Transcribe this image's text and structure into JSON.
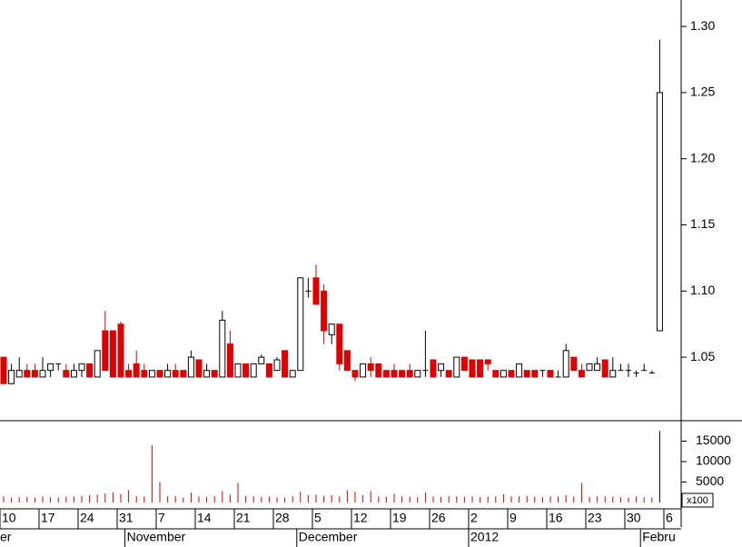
{
  "chart_data": {
    "type": "candlestick",
    "categories": [
      "10",
      null,
      null,
      null,
      null,
      "17",
      null,
      null,
      null,
      null,
      "24",
      null,
      null,
      null,
      null,
      "31",
      null,
      null,
      null,
      null,
      "7",
      null,
      null,
      null,
      null,
      "14",
      null,
      null,
      null,
      null,
      "21",
      null,
      null,
      null,
      null,
      "28",
      null,
      null,
      null,
      null,
      "5",
      null,
      null,
      null,
      null,
      "12",
      null,
      null,
      null,
      null,
      "19",
      null,
      null,
      null,
      null,
      "26",
      null,
      null,
      null,
      null,
      "2",
      null,
      null,
      null,
      null,
      "9",
      null,
      null,
      null,
      null,
      "16",
      null,
      null,
      null,
      null,
      "23",
      null,
      null,
      null,
      null,
      "30",
      null,
      null,
      null,
      null,
      "6"
    ],
    "month_categories": [
      "er",
      null,
      null,
      null,
      null,
      null,
      null,
      null,
      null,
      null,
      null,
      null,
      null,
      null,
      null,
      null,
      "November",
      null,
      null,
      null,
      null,
      null,
      null,
      null,
      null,
      null,
      null,
      null,
      null,
      null,
      null,
      null,
      null,
      null,
      null,
      null,
      null,
      null,
      "December",
      null,
      null,
      null,
      null,
      null,
      null,
      null,
      null,
      null,
      null,
      null,
      null,
      null,
      null,
      null,
      null,
      null,
      null,
      null,
      null,
      null,
      "2012",
      null,
      null,
      null,
      null,
      null,
      null,
      null,
      null,
      null,
      null,
      null,
      null,
      null,
      null,
      null,
      null,
      null,
      null,
      null,
      null,
      null,
      "Febru",
      null,
      null,
      null
    ],
    "open": [
      1.05,
      1.03,
      1.035,
      1.04,
      1.04,
      1.035,
      1.04,
      1.045,
      1.04,
      1.035,
      1.04,
      1.045,
      1.035,
      1.07,
      1.07,
      1.075,
      1.04,
      1.045,
      1.04,
      1.035,
      1.04,
      1.035,
      1.04,
      1.04,
      1.035,
      1.048,
      1.035,
      1.04,
      1.035,
      1.06,
      1.035,
      1.045,
      1.035,
      1.045,
      1.045,
      1.04,
      1.055,
      1.035,
      1.04,
      1.1,
      1.11,
      1.1,
      1.067,
      1.075,
      1.055,
      1.04,
      1.035,
      1.045,
      1.045,
      1.04,
      1.04,
      1.04,
      1.04,
      1.035,
      1.04,
      1.048,
      1.04,
      1.04,
      1.035,
      1.05,
      1.048,
      1.048,
      1.048,
      1.04,
      1.035,
      1.04,
      1.035,
      1.04,
      1.04,
      1.04,
      1.04,
      1.035,
      1.035,
      1.05,
      1.04,
      1.04,
      1.04,
      1.048,
      1.035,
      1.04,
      1.04,
      1.038,
      1.04,
      1.038,
      1.07,
      null
    ],
    "high": [
      1.05,
      1.045,
      1.05,
      1.045,
      1.045,
      1.05,
      1.045,
      1.045,
      1.045,
      1.045,
      1.045,
      1.045,
      1.055,
      1.085,
      1.07,
      1.077,
      1.045,
      1.055,
      1.045,
      1.04,
      1.04,
      1.045,
      1.045,
      1.04,
      1.055,
      1.048,
      1.045,
      1.04,
      1.085,
      1.07,
      1.045,
      1.045,
      1.045,
      1.052,
      1.045,
      1.05,
      1.055,
      1.04,
      1.11,
      1.11,
      1.12,
      1.105,
      1.075,
      1.075,
      1.055,
      1.04,
      1.045,
      1.05,
      1.045,
      1.04,
      1.045,
      1.04,
      1.045,
      1.04,
      1.07,
      1.048,
      1.045,
      1.04,
      1.05,
      1.05,
      1.048,
      1.048,
      1.048,
      1.04,
      1.04,
      1.04,
      1.045,
      1.04,
      1.04,
      1.04,
      1.04,
      1.04,
      1.06,
      1.05,
      1.045,
      1.045,
      1.05,
      1.048,
      1.05,
      1.045,
      1.045,
      1.04,
      1.045,
      1.04,
      1.29,
      null
    ],
    "low": [
      1.03,
      1.03,
      1.035,
      1.035,
      1.035,
      1.035,
      1.035,
      1.04,
      1.035,
      1.035,
      1.035,
      1.035,
      1.035,
      1.04,
      1.035,
      1.035,
      1.035,
      1.035,
      1.035,
      1.035,
      1.035,
      1.035,
      1.035,
      1.035,
      1.035,
      1.035,
      1.035,
      1.035,
      1.035,
      1.035,
      1.035,
      1.035,
      1.035,
      1.045,
      1.035,
      1.04,
      1.035,
      1.035,
      1.04,
      1.095,
      1.09,
      1.06,
      1.06,
      1.04,
      1.04,
      1.032,
      1.035,
      1.035,
      1.035,
      1.035,
      1.035,
      1.035,
      1.035,
      1.035,
      1.035,
      1.035,
      1.035,
      1.035,
      1.035,
      1.04,
      1.035,
      1.035,
      1.04,
      1.035,
      1.035,
      1.035,
      1.035,
      1.035,
      1.035,
      1.035,
      1.035,
      1.035,
      1.035,
      1.04,
      1.035,
      1.04,
      1.04,
      1.035,
      1.035,
      1.04,
      1.035,
      1.035,
      1.04,
      1.038,
      1.07,
      null
    ],
    "close": [
      1.03,
      1.04,
      1.04,
      1.035,
      1.035,
      1.04,
      1.045,
      1.045,
      1.035,
      1.04,
      1.045,
      1.035,
      1.055,
      1.04,
      1.035,
      1.035,
      1.035,
      1.035,
      1.035,
      1.04,
      1.035,
      1.04,
      1.035,
      1.035,
      1.05,
      1.035,
      1.04,
      1.035,
      1.078,
      1.035,
      1.045,
      1.035,
      1.045,
      1.05,
      1.035,
      1.048,
      1.035,
      1.04,
      1.11,
      1.1,
      1.09,
      1.07,
      1.075,
      1.045,
      1.04,
      1.035,
      1.045,
      1.04,
      1.035,
      1.035,
      1.035,
      1.035,
      1.035,
      1.04,
      1.04,
      1.035,
      1.045,
      1.035,
      1.05,
      1.04,
      1.035,
      1.035,
      1.045,
      1.035,
      1.04,
      1.035,
      1.045,
      1.035,
      1.035,
      1.04,
      1.035,
      1.035,
      1.055,
      1.04,
      1.035,
      1.045,
      1.045,
      1.035,
      1.04,
      1.04,
      1.04,
      1.038,
      1.04,
      1.038,
      1.25,
      null
    ],
    "volume": [
      1500,
      1200,
      1300,
      1400,
      1200,
      1500,
      1300,
      1200,
      1400,
      1500,
      1600,
      1800,
      1900,
      2200,
      2500,
      2100,
      3000,
      1600,
      1500,
      14000,
      5000,
      1500,
      1600,
      1200,
      2400,
      1500,
      1400,
      1600,
      2800,
      1900,
      4800,
      1600,
      1500,
      1400,
      1500,
      1300,
      1200,
      1500,
      2600,
      1800,
      1900,
      1600,
      1800,
      1500,
      3000,
      2600,
      1800,
      2800,
      1500,
      1400,
      2100,
      1500,
      1400,
      1300,
      2400,
      1500,
      1400,
      1600,
      1500,
      1400,
      1500,
      1300,
      1400,
      1500,
      2000,
      1500,
      1500,
      1600,
      1400,
      1300,
      1500,
      1500,
      1800,
      1500,
      4800,
      1400,
      1500,
      1500,
      1400,
      1300,
      1200,
      1500,
      1300,
      1200,
      17500,
      null
    ],
    "ylim": [
      1.002,
      1.32
    ],
    "yticks": [
      {
        "value": 1.05,
        "label": "1.05"
      },
      {
        "value": 1.1,
        "label": "1.10"
      },
      {
        "value": 1.15,
        "label": "1.15"
      },
      {
        "value": 1.2,
        "label": "1.20"
      },
      {
        "value": 1.25,
        "label": "1.25"
      },
      {
        "value": 1.3,
        "label": "1.30"
      }
    ],
    "volume_ylim": [
      0,
      20000
    ],
    "volume_yticks": [
      5000,
      10000,
      15000
    ],
    "volume_unit": "x100",
    "up_color": "#000000",
    "down_color": "#e00000",
    "volume_color": "#e00000"
  }
}
